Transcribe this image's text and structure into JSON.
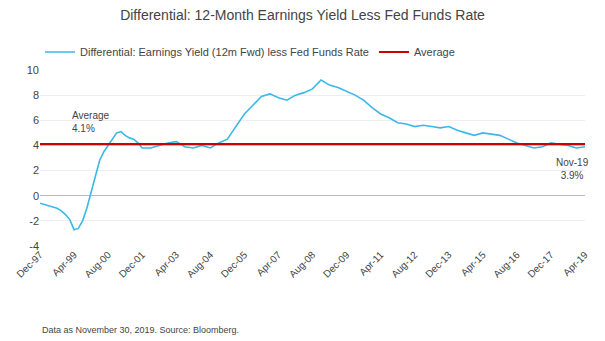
{
  "chart_data": {
    "type": "line",
    "title": "Differential: 12-Month Earnings Yield Less Fed Funds Rate",
    "x": [
      0,
      0.5,
      1,
      1.5,
      2,
      2.5,
      3,
      3.5,
      4,
      4.5,
      5,
      5.5,
      6,
      6.5,
      7,
      7.5,
      8,
      8.5,
      9,
      9.5,
      10,
      10.5,
      11,
      11.5,
      12,
      13,
      14,
      15,
      16,
      17,
      18,
      19,
      20,
      21,
      22,
      23,
      24,
      25,
      26,
      27,
      28,
      29,
      30,
      31,
      32,
      33,
      34,
      35,
      36,
      37,
      38,
      39,
      40,
      41,
      42,
      43,
      44,
      45,
      46,
      47,
      48,
      49,
      50,
      51,
      52,
      53,
      54,
      55,
      56,
      57,
      58,
      59,
      60,
      61,
      62,
      63,
      64
    ],
    "series": [
      {
        "name": "Differential: Earnings Yield (12m Fwd) less Fed Funds Rate",
        "color": "#3BB8E8",
        "values": [
          -0.6,
          -0.7,
          -0.8,
          -0.9,
          -1.0,
          -1.2,
          -1.5,
          -1.9,
          -2.7,
          -2.6,
          -2.0,
          -1.0,
          0.2,
          1.5,
          2.8,
          3.5,
          4.0,
          4.5,
          5.0,
          5.1,
          4.8,
          4.6,
          4.5,
          4.2,
          3.8,
          3.8,
          4.0,
          4.2,
          4.3,
          3.9,
          3.8,
          4.0,
          3.8,
          4.2,
          4.5,
          5.5,
          6.5,
          7.2,
          7.9,
          8.1,
          7.8,
          7.6,
          8.0,
          8.2,
          8.5,
          9.2,
          8.8,
          8.6,
          8.3,
          8.0,
          7.6,
          7.0,
          6.5,
          6.2,
          5.8,
          5.7,
          5.5,
          5.6,
          5.5,
          5.4,
          5.5,
          5.2,
          5.0,
          4.8,
          5.0,
          4.9,
          4.8,
          4.5,
          4.2,
          4.0,
          3.8,
          3.9,
          4.2,
          4.1,
          4.0,
          3.8,
          3.9
        ]
      }
    ],
    "reference_lines": [
      {
        "name": "Average",
        "value": 4.1,
        "color": "#CC0000"
      },
      {
        "value": 0,
        "color": "#BBBBBB"
      }
    ],
    "annotations": [
      {
        "text": "Average\n4.1%",
        "x": 3.5,
        "y": 5.9,
        "align": "left"
      },
      {
        "text": "Nov-19\n3.9%",
        "x": 62.5,
        "y": 3.25,
        "align": "center"
      }
    ],
    "footnote": "Data as November 30, 2019. Source: Bloomberg.",
    "xlim": [
      0,
      64
    ],
    "xticks": [
      {
        "value": 0,
        "label": "Dec-97"
      },
      {
        "value": 4,
        "label": "Apr-99"
      },
      {
        "value": 8,
        "label": "Aug-00"
      },
      {
        "value": 12,
        "label": "Dec-01"
      },
      {
        "value": 16,
        "label": "Apr-03"
      },
      {
        "value": 20,
        "label": "Aug-04"
      },
      {
        "value": 24,
        "label": "Dec-05"
      },
      {
        "value": 28,
        "label": "Apr-07"
      },
      {
        "value": 32,
        "label": "Aug-08"
      },
      {
        "value": 36,
        "label": "Dec-09"
      },
      {
        "value": 40,
        "label": "Apr-11"
      },
      {
        "value": 44,
        "label": "Aug-12"
      },
      {
        "value": 48,
        "label": "Dec-13"
      },
      {
        "value": 52,
        "label": "Apr-15"
      },
      {
        "value": 56,
        "label": "Aug-16"
      },
      {
        "value": 60,
        "label": "Dec-17"
      },
      {
        "value": 64,
        "label": "Apr-19"
      }
    ],
    "ylim": [
      -4,
      10
    ],
    "yticks": [
      -4,
      -2,
      0,
      2,
      4,
      6,
      8,
      10
    ],
    "grid": true
  }
}
